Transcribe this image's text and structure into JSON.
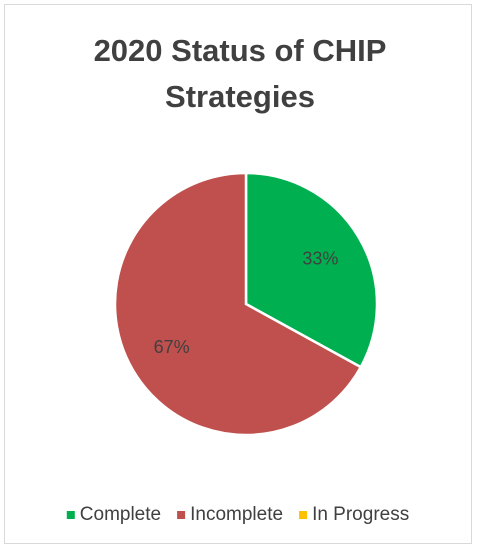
{
  "chart_data": {
    "type": "pie",
    "title": "2020 Status of CHIP Strategies",
    "categories": [
      "Complete",
      "Incomplete",
      "In Progress"
    ],
    "values": [
      33,
      67,
      0
    ],
    "value_labels": [
      "33%",
      "67%",
      null
    ],
    "colors": [
      "#00b050",
      "#c0504d",
      "#ffc000"
    ],
    "legend": "bottom"
  }
}
